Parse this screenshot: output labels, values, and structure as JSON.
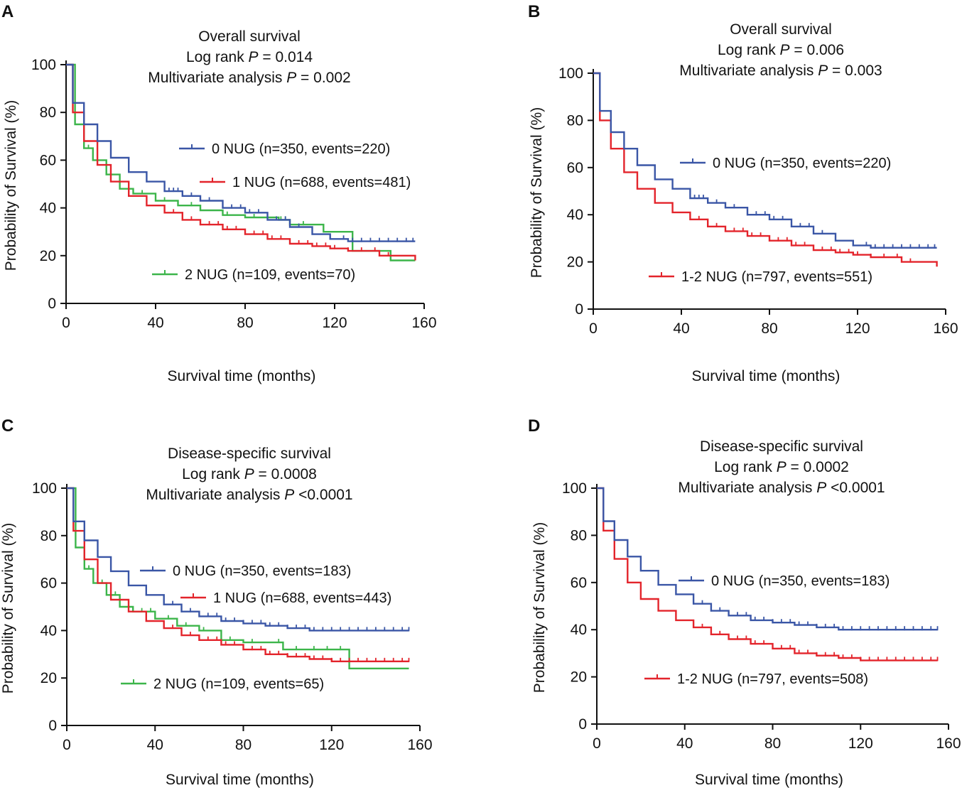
{
  "figure": {
    "description_note": "Four Kaplan-Meier survival curves, panels A-D"
  },
  "chart_data": [
    {
      "panel": "A",
      "type": "line",
      "subtype": "kaplan-meier",
      "title_lines": [
        {
          "pre": "Overall survival",
          "italic": "",
          "post": ""
        },
        {
          "pre": "Log rank ",
          "italic": "P",
          "post": " = 0.014"
        },
        {
          "pre": "Multivariate analysis ",
          "italic": "P",
          "post": " = 0.002"
        }
      ],
      "xlabel": "Survival time (months)",
      "ylabel": "Probability of Survival (%)",
      "xlim": [
        0,
        160
      ],
      "ylim": [
        0,
        100
      ],
      "xticks": [
        0,
        40,
        80,
        120,
        160
      ],
      "yticks": [
        0,
        20,
        40,
        60,
        80,
        100
      ],
      "series": [
        {
          "name": "0 NUG (n=350, events=220)",
          "color": "#3a56a6",
          "x": [
            0,
            3,
            8,
            14,
            20,
            28,
            36,
            44,
            52,
            60,
            70,
            80,
            90,
            100,
            110,
            118,
            126,
            140,
            156
          ],
          "y": [
            100,
            84,
            75,
            68,
            61,
            55,
            51,
            47,
            45,
            43,
            40,
            38,
            35,
            32,
            29,
            27,
            26,
            26,
            26
          ],
          "censor_x": [
            44,
            46,
            48,
            50,
            56,
            60,
            64,
            70,
            74,
            78,
            82,
            86,
            90,
            94,
            98,
            104,
            110,
            118,
            124,
            128,
            132,
            136,
            140,
            144,
            148,
            152,
            155
          ]
        },
        {
          "name": "1 NUG (n=688, events=481)",
          "color": "#e3242b",
          "x": [
            0,
            3,
            8,
            14,
            20,
            28,
            36,
            44,
            52,
            60,
            70,
            80,
            90,
            100,
            110,
            118,
            126,
            140,
            156
          ],
          "y": [
            100,
            80,
            68,
            58,
            51,
            45,
            41,
            38,
            35,
            33,
            31,
            29,
            27,
            25,
            24,
            23,
            22,
            20,
            18
          ],
          "censor_x": [
            44,
            48,
            52,
            56,
            60,
            64,
            68,
            72,
            76,
            80,
            84,
            88,
            92,
            96,
            100,
            104,
            108,
            112,
            116,
            120,
            126,
            132,
            138,
            144
          ]
        },
        {
          "name": "2 NUG (n=109, events=70)",
          "color": "#3cb54a",
          "x": [
            0,
            4,
            8,
            12,
            18,
            24,
            30,
            40,
            50,
            60,
            70,
            80,
            95,
            100,
            115,
            128,
            145,
            156
          ],
          "y": [
            100,
            75,
            65,
            60,
            54,
            48,
            46,
            43,
            41,
            39,
            37,
            36,
            35,
            33,
            30,
            22,
            18,
            18
          ],
          "censor_x": [
            10,
            14,
            18,
            30,
            34,
            44,
            56,
            72,
            84,
            96,
            98,
            106
          ]
        }
      ]
    },
    {
      "panel": "B",
      "type": "line",
      "subtype": "kaplan-meier",
      "title_lines": [
        {
          "pre": "Overall survival",
          "italic": "",
          "post": ""
        },
        {
          "pre": "Log rank ",
          "italic": "P",
          "post": " = 0.006"
        },
        {
          "pre": "Multivariate analysis ",
          "italic": "P",
          "post": " = 0.003"
        }
      ],
      "xlabel": "Survival time (months)",
      "ylabel": "Probability of Survival (%)",
      "xlim": [
        0,
        160
      ],
      "ylim": [
        0,
        100
      ],
      "xticks": [
        0,
        40,
        80,
        120,
        160
      ],
      "yticks": [
        0,
        20,
        40,
        60,
        80,
        100
      ],
      "series": [
        {
          "name": "0 NUG (n=350, events=220)",
          "color": "#3a56a6",
          "x": [
            0,
            3,
            8,
            14,
            20,
            28,
            36,
            44,
            52,
            60,
            70,
            80,
            90,
            100,
            110,
            118,
            126,
            140,
            156
          ],
          "y": [
            100,
            84,
            75,
            68,
            61,
            55,
            51,
            47,
            45,
            43,
            40,
            38,
            35,
            32,
            29,
            27,
            26,
            26,
            26
          ],
          "censor_x": [
            44,
            46,
            48,
            50,
            56,
            60,
            64,
            70,
            74,
            78,
            82,
            86,
            90,
            94,
            98,
            104,
            110,
            118,
            124,
            128,
            132,
            136,
            140,
            144,
            148,
            152,
            155
          ]
        },
        {
          "name": "1-2 NUG (n=797, events=551)",
          "color": "#e3242b",
          "x": [
            0,
            3,
            8,
            14,
            20,
            28,
            36,
            44,
            52,
            60,
            70,
            80,
            90,
            100,
            110,
            118,
            126,
            140,
            156
          ],
          "y": [
            100,
            80,
            68,
            58,
            51,
            45,
            41,
            38,
            35,
            33,
            31,
            29,
            27,
            25,
            24,
            23,
            22,
            20,
            18
          ],
          "censor_x": [
            44,
            48,
            52,
            56,
            60,
            64,
            68,
            72,
            76,
            80,
            84,
            88,
            92,
            96,
            100,
            104,
            108,
            112,
            116,
            120,
            126,
            132,
            138,
            144
          ]
        }
      ]
    },
    {
      "panel": "C",
      "type": "line",
      "subtype": "kaplan-meier",
      "title_lines": [
        {
          "pre": "Disease-specific survival",
          "italic": "",
          "post": ""
        },
        {
          "pre": "Log rank ",
          "italic": "P",
          "post": " = 0.0008"
        },
        {
          "pre": "Multivariate analysis ",
          "italic": "P",
          "post": " <0.0001"
        }
      ],
      "xlabel": "Survival time (months)",
      "ylabel": "Probability of Survival (%)",
      "xlim": [
        0,
        160
      ],
      "ylim": [
        0,
        100
      ],
      "xticks": [
        0,
        40,
        80,
        120,
        160
      ],
      "yticks": [
        0,
        20,
        40,
        60,
        80,
        100
      ],
      "series": [
        {
          "name": "0 NUG (n=350, events=183)",
          "color": "#3a56a6",
          "x": [
            0,
            3,
            8,
            14,
            20,
            28,
            36,
            44,
            52,
            60,
            70,
            80,
            90,
            100,
            110,
            120,
            140,
            155
          ],
          "y": [
            100,
            86,
            78,
            71,
            65,
            59,
            55,
            51,
            48,
            46,
            44,
            43,
            42,
            41,
            40,
            40,
            40,
            40
          ],
          "censor_x": [
            44,
            48,
            52,
            56,
            60,
            64,
            68,
            72,
            76,
            80,
            84,
            88,
            92,
            96,
            100,
            104,
            108,
            112,
            116,
            120,
            124,
            128,
            132,
            136,
            140,
            144,
            148,
            152,
            155
          ]
        },
        {
          "name": "1 NUG (n=688, events=443)",
          "color": "#e3242b",
          "x": [
            0,
            3,
            8,
            14,
            20,
            28,
            36,
            44,
            52,
            60,
            70,
            80,
            90,
            100,
            110,
            120,
            140,
            155
          ],
          "y": [
            100,
            82,
            70,
            60,
            53,
            48,
            44,
            41,
            38,
            36,
            34,
            32,
            30,
            29,
            28,
            27,
            27,
            27
          ],
          "censor_x": [
            44,
            48,
            52,
            56,
            60,
            64,
            68,
            72,
            76,
            80,
            84,
            88,
            92,
            96,
            100,
            104,
            108,
            112,
            116,
            120,
            124,
            128,
            132,
            136,
            140,
            144,
            148,
            152,
            155
          ]
        },
        {
          "name": "2 NUG (n=109, events=65)",
          "color": "#3cb54a",
          "x": [
            0,
            4,
            8,
            12,
            18,
            24,
            30,
            40,
            50,
            60,
            70,
            80,
            98,
            110,
            128,
            155
          ],
          "y": [
            100,
            75,
            66,
            60,
            55,
            50,
            48,
            45,
            42,
            40,
            36,
            35,
            32,
            32,
            24,
            24
          ],
          "censor_x": [
            10,
            16,
            22,
            30,
            34,
            38,
            46,
            54,
            62,
            74,
            84,
            96,
            104,
            112,
            118,
            124
          ]
        }
      ]
    },
    {
      "panel": "D",
      "type": "line",
      "subtype": "kaplan-meier",
      "title_lines": [
        {
          "pre": "Disease-specific survival",
          "italic": "",
          "post": ""
        },
        {
          "pre": "Log rank ",
          "italic": "P",
          "post": " = 0.0002"
        },
        {
          "pre": "Multivariate analysis ",
          "italic": "P",
          "post": " <0.0001"
        }
      ],
      "xlabel": "Survival time (months)",
      "ylabel": "Probability of Survival (%)",
      "xlim": [
        0,
        160
      ],
      "ylim": [
        0,
        100
      ],
      "xticks": [
        0,
        40,
        80,
        120,
        160
      ],
      "yticks": [
        0,
        20,
        40,
        60,
        80,
        100
      ],
      "series": [
        {
          "name": "0 NUG (n=350, events=183)",
          "color": "#3a56a6",
          "x": [
            0,
            3,
            8,
            14,
            20,
            28,
            36,
            44,
            52,
            60,
            70,
            80,
            90,
            100,
            110,
            120,
            140,
            155
          ],
          "y": [
            100,
            86,
            78,
            71,
            65,
            59,
            55,
            51,
            48,
            46,
            44,
            43,
            42,
            41,
            40,
            40,
            40,
            40
          ],
          "censor_x": [
            44,
            48,
            52,
            56,
            60,
            64,
            68,
            72,
            76,
            80,
            84,
            88,
            92,
            96,
            100,
            104,
            108,
            112,
            116,
            120,
            124,
            128,
            132,
            136,
            140,
            144,
            148,
            152,
            155
          ]
        },
        {
          "name": "1-2 NUG (n=797, events=508)",
          "color": "#e3242b",
          "x": [
            0,
            3,
            8,
            14,
            20,
            28,
            36,
            44,
            52,
            60,
            70,
            80,
            90,
            100,
            110,
            120,
            140,
            155
          ],
          "y": [
            100,
            82,
            70,
            60,
            53,
            48,
            44,
            41,
            38,
            36,
            34,
            32,
            30,
            29,
            28,
            27,
            27,
            27
          ],
          "censor_x": [
            44,
            48,
            52,
            56,
            60,
            64,
            68,
            72,
            76,
            80,
            84,
            88,
            92,
            96,
            100,
            104,
            108,
            112,
            116,
            120,
            124,
            128,
            132,
            136,
            140,
            144,
            148,
            152,
            155
          ]
        }
      ]
    }
  ]
}
